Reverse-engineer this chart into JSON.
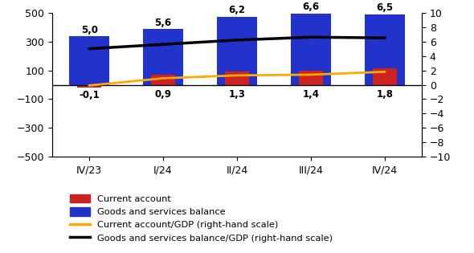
{
  "categories": [
    "IV/23",
    "I/24",
    "II/24",
    "III/24",
    "IV/24"
  ],
  "current_account": [
    -20,
    70,
    90,
    95,
    115
  ],
  "goods_services_balance": [
    335,
    385,
    470,
    495,
    490
  ],
  "ca_gdp": [
    -0.1,
    0.9,
    1.3,
    1.4,
    1.8
  ],
  "gsb_gdp": [
    5.0,
    5.6,
    6.2,
    6.6,
    6.5
  ],
  "ca_color": "#cc2222",
  "gsb_color": "#2233cc",
  "ca_gdp_color": "#ffaa00",
  "gsb_gdp_color": "#000000",
  "ylim_left": [
    -500,
    500
  ],
  "ylim_right": [
    -10,
    10
  ],
  "bar_width": 0.55,
  "ca_gdp_labels": [
    "-0,1",
    "0,9",
    "1,3",
    "1,4",
    "1,8"
  ],
  "gsb_gdp_labels": [
    "5,0",
    "5,6",
    "6,2",
    "6,6",
    "6,5"
  ],
  "legend_labels": [
    "Current account",
    "Goods and services balance",
    "Current account/GDP (right-hand scale)",
    "Goods and services balance/GDP (right-hand scale)"
  ],
  "yticks_left": [
    -500,
    -300,
    -100,
    100,
    300,
    500
  ],
  "yticks_right": [
    -10,
    -8,
    -6,
    -4,
    -2,
    0,
    2,
    4,
    6,
    8,
    10
  ]
}
